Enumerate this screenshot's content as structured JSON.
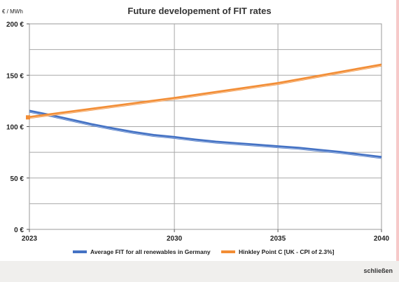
{
  "footer": {
    "close_label": "schließen"
  },
  "chart_data": {
    "type": "line",
    "title": "Future developement of FIT rates",
    "ylabel": "€ / MWh",
    "ylim": [
      0,
      200
    ],
    "yticks": [
      0,
      50,
      100,
      150,
      200
    ],
    "ytick_labels": [
      "0 €",
      "50 €",
      "100 €",
      "150 €",
      "200 €"
    ],
    "xlim": [
      2023,
      2040
    ],
    "xticks": [
      2023,
      2030,
      2035,
      2040
    ],
    "xtick_labels": [
      "2023",
      "2030",
      "2035",
      "2040"
    ],
    "grid": true,
    "legend_position": "bottom",
    "series": [
      {
        "name": "Average FIT for all renewables in Germany",
        "color": "#4472c4",
        "x": [
          2023,
          2024,
          2025,
          2026,
          2027,
          2028,
          2029,
          2030,
          2031,
          2032,
          2033,
          2034,
          2035,
          2036,
          2037,
          2038,
          2039,
          2040
        ],
        "y": [
          115,
          111,
          106.5,
          102,
          98,
          94.5,
          91.5,
          89.5,
          87,
          85,
          83.5,
          82,
          80.5,
          79,
          77,
          75,
          72.5,
          70
        ]
      },
      {
        "name": "Hinkley Point C [UK - CPI of 2.3%]",
        "color": "#f28d35",
        "x": [
          2023,
          2030,
          2035,
          2040
        ],
        "y": [
          109,
          127.5,
          142,
          160
        ]
      }
    ]
  }
}
